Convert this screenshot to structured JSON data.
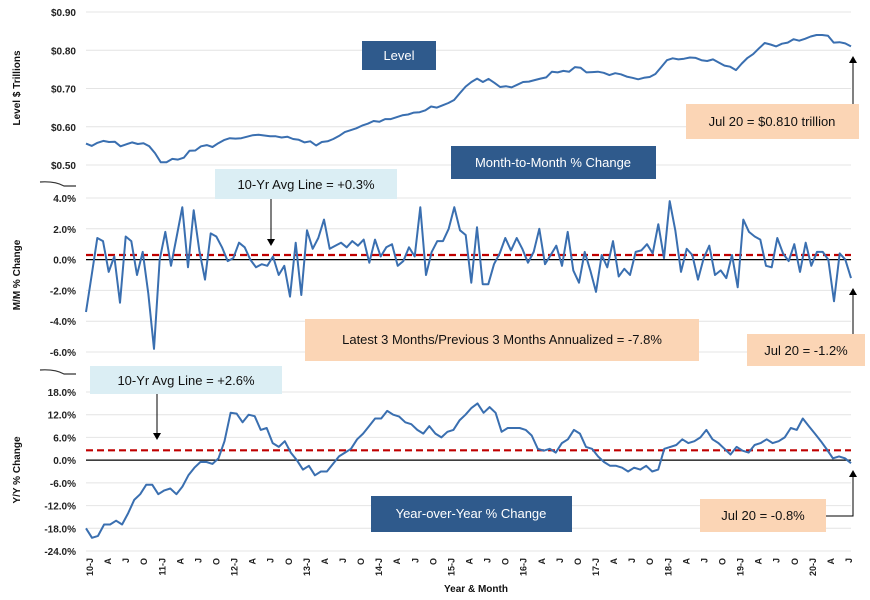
{
  "colors": {
    "series": "#3a6fb0",
    "avg_line": "#c00000",
    "zero_line": "#000000",
    "navy": "#2f5a8c",
    "peach": "#fbd5b5",
    "light_blue": "#dbeef4"
  },
  "chart_data": {
    "type": "line",
    "xlabel": "Year & Month",
    "x_ticks": [
      "10-J",
      "A",
      "J",
      "O",
      "11-J",
      "A",
      "J",
      "O",
      "12-J",
      "A",
      "J",
      "O",
      "13-J",
      "A",
      "J",
      "O",
      "14-J",
      "A",
      "J",
      "O",
      "15-J",
      "A",
      "J",
      "O",
      "16-J",
      "A",
      "J",
      "O",
      "17-J",
      "A",
      "J",
      "O",
      "18-J",
      "A",
      "J",
      "O",
      "19-J",
      "A",
      "J",
      "O",
      "20-J",
      "A",
      "J"
    ],
    "panels": [
      {
        "name": "level",
        "title": "Level",
        "ylabel": "Level $ Trillions",
        "ylim": [
          0.5,
          0.9
        ],
        "yticks": [
          "$0.90",
          "$0.80",
          "$0.70",
          "$0.60",
          "$0.50"
        ],
        "callout": "Jul 20 = $0.810 trillion",
        "values": [
          0.556,
          0.55,
          0.558,
          0.563,
          0.56,
          0.561,
          0.549,
          0.554,
          0.559,
          0.555,
          0.557,
          0.549,
          0.531,
          0.507,
          0.507,
          0.516,
          0.514,
          0.519,
          0.537,
          0.538,
          0.549,
          0.552,
          0.547,
          0.557,
          0.565,
          0.57,
          0.569,
          0.57,
          0.574,
          0.578,
          0.579,
          0.577,
          0.575,
          0.575,
          0.572,
          0.574,
          0.568,
          0.566,
          0.559,
          0.562,
          0.551,
          0.56,
          0.562,
          0.568,
          0.576,
          0.586,
          0.591,
          0.596,
          0.603,
          0.608,
          0.615,
          0.613,
          0.62,
          0.62,
          0.625,
          0.63,
          0.632,
          0.637,
          0.638,
          0.643,
          0.653,
          0.65,
          0.656,
          0.662,
          0.67,
          0.688,
          0.705,
          0.717,
          0.726,
          0.717,
          0.725,
          0.715,
          0.704,
          0.706,
          0.703,
          0.71,
          0.717,
          0.718,
          0.722,
          0.726,
          0.729,
          0.744,
          0.742,
          0.746,
          0.744,
          0.756,
          0.754,
          0.742,
          0.743,
          0.744,
          0.741,
          0.735,
          0.74,
          0.737,
          0.731,
          0.728,
          0.724,
          0.728,
          0.73,
          0.738,
          0.756,
          0.774,
          0.779,
          0.776,
          0.778,
          0.781,
          0.78,
          0.774,
          0.772,
          0.776,
          0.768,
          0.76,
          0.757,
          0.748,
          0.765,
          0.78,
          0.79,
          0.805,
          0.819,
          0.815,
          0.81,
          0.817,
          0.82,
          0.829,
          0.825,
          0.83,
          0.836,
          0.84,
          0.84,
          0.838,
          0.82,
          0.821,
          0.818,
          0.81
        ]
      },
      {
        "name": "mm",
        "title": "Month-to-Month % Change",
        "ylabel": "M/M % Change",
        "ylim": [
          -6.0,
          4.0
        ],
        "yticks": [
          "4.0%",
          "2.0%",
          "0.0%",
          "-2.0%",
          "-4.0%",
          "-6.0%"
        ],
        "avg": 0.3,
        "avg_label": "10-Yr Avg Line = +0.3%",
        "callout": "Jul 20 = -1.2%",
        "note": "Latest 3 Months/Previous 3 Months Annualized = -7.8%",
        "values": [
          -3.4,
          -1.0,
          1.4,
          1.2,
          -0.8,
          0.2,
          -2.8,
          1.5,
          1.2,
          -1.0,
          0.5,
          -2.2,
          -5.8,
          0.0,
          1.8,
          -0.4,
          1.5,
          3.4,
          -0.5,
          3.2,
          0.6,
          -1.3,
          1.7,
          1.5,
          0.8,
          -0.1,
          0.1,
          1.1,
          0.8,
          0.0,
          -0.5,
          -0.3,
          -0.4,
          0.2,
          -1.0,
          -0.4,
          -2.4,
          1.1,
          -2.3,
          1.9,
          0.7,
          1.4,
          2.6,
          0.7,
          0.9,
          1.1,
          0.8,
          1.2,
          0.9,
          1.3,
          -0.2,
          1.3,
          0.2,
          0.8,
          1.0,
          -0.4,
          -0.1,
          0.8,
          0.2,
          3.4,
          -1.0,
          0.5,
          1.2,
          1.2,
          2.0,
          3.4,
          1.9,
          1.6,
          -1.5,
          2.1,
          -1.6,
          -1.6,
          -0.3,
          0.4,
          1.4,
          0.6,
          1.4,
          0.7,
          -0.2,
          0.5,
          2.0,
          -0.3,
          0.3,
          0.9,
          -0.4,
          1.8,
          -0.7,
          -1.5,
          0.5,
          -0.7,
          -2.1,
          0.3,
          -0.5,
          1.2,
          -1.1,
          -0.6,
          -1.0,
          0.5,
          0.6,
          1.0,
          0.4,
          2.3,
          0.1,
          3.8,
          1.9,
          -0.8,
          0.7,
          0.3,
          -1.3,
          0.1,
          0.9,
          -1.0,
          -0.7,
          -1.2,
          0.3,
          -1.8,
          2.6,
          1.8,
          1.5,
          1.3,
          -0.4,
          -0.5,
          1.4,
          0.4,
          -0.1,
          1.0,
          -0.8,
          1.1,
          -0.4,
          0.5,
          0.5,
          0.0,
          -2.7,
          0.4,
          0.0,
          -1.2
        ]
      },
      {
        "name": "yy",
        "title": "Year-over-Year % Change",
        "ylabel": "Y/Y % Change",
        "ylim": [
          -24.0,
          18.0
        ],
        "yticks": [
          "18.0%",
          "12.0%",
          "6.0%",
          "0.0%",
          "-6.0%",
          "-12.0%",
          "-18.0%",
          "-24.0%"
        ],
        "avg": 2.6,
        "avg_label": "10-Yr Avg Line = +2.6%",
        "callout": "Jul 20 = -0.8%",
        "values": [
          -18.0,
          -20.5,
          -20.0,
          -17.0,
          -17.0,
          -16.0,
          -17.0,
          -14.0,
          -10.5,
          -9.0,
          -6.5,
          -6.5,
          -9.0,
          -8.0,
          -7.5,
          -9.0,
          -7.0,
          -4.0,
          -2.0,
          -0.5,
          -0.5,
          -1.0,
          0.5,
          5.0,
          12.5,
          12.3,
          10.0,
          12.0,
          11.6,
          8.0,
          8.5,
          4.5,
          3.5,
          5.0,
          2.0,
          0.0,
          -2.5,
          -1.5,
          -4.0,
          -3.0,
          -3.0,
          -1.0,
          1.0,
          2.0,
          3.0,
          5.5,
          7.0,
          9.0,
          11.0,
          11.0,
          13.0,
          12.0,
          11.5,
          10.0,
          9.5,
          8.0,
          7.0,
          9.0,
          7.0,
          6.0,
          7.5,
          8.0,
          10.5,
          12.0,
          13.8,
          15.0,
          12.5,
          14.0,
          12.5,
          7.5,
          8.5,
          8.5,
          8.5,
          8.0,
          6.5,
          3.0,
          2.5,
          3.0,
          2.0,
          4.5,
          5.5,
          8.0,
          7.0,
          3.5,
          3.0,
          1.0,
          -0.5,
          -1.5,
          -1.5,
          -2.0,
          -3.0,
          -2.0,
          -2.5,
          -1.5,
          -3.0,
          -2.5,
          3.0,
          3.5,
          4.0,
          5.5,
          4.5,
          5.0,
          6.0,
          8.0,
          5.5,
          4.5,
          3.0,
          1.5,
          3.5,
          2.5,
          2.0,
          4.0,
          4.5,
          5.5,
          4.5,
          5.0,
          6.0,
          8.5,
          8.0,
          11.0,
          9.0,
          7.0,
          5.0,
          2.8,
          0.5,
          1.0,
          0.5,
          -0.8
        ]
      }
    ]
  }
}
